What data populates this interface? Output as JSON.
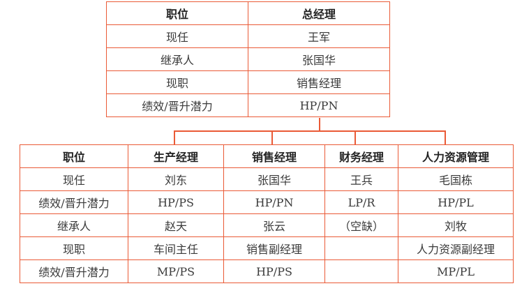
{
  "colors": {
    "border": "#ea5a36",
    "text": "#3a3a3a"
  },
  "top_table": {
    "header": [
      "职位",
      "总经理"
    ],
    "rows": [
      [
        "现任",
        "王军"
      ],
      [
        "继承人",
        "张国华"
      ],
      [
        "现职",
        "销售经理"
      ],
      [
        "绩效/晋升潜力",
        "HP/PN"
      ]
    ]
  },
  "bottom_table": {
    "header": [
      "职位",
      "生产经理",
      "销售经理",
      "财务经理",
      "人力资源管理"
    ],
    "rows": [
      [
        "现任",
        "刘东",
        "张国华",
        "王兵",
        "毛国栋"
      ],
      [
        "绩效/晋升潜力",
        "HP/PS",
        "HP/PN",
        "LP/R",
        "HP/PL"
      ],
      [
        "继承人",
        "赵天",
        "张云",
        "（空缺）",
        "刘牧"
      ],
      [
        "现职",
        "车间主任",
        "销售副经理",
        "",
        "人力资源副经理"
      ],
      [
        "绩效/晋升潜力",
        "MP/PS",
        "HP/PS",
        "",
        "MP/PL"
      ]
    ]
  }
}
